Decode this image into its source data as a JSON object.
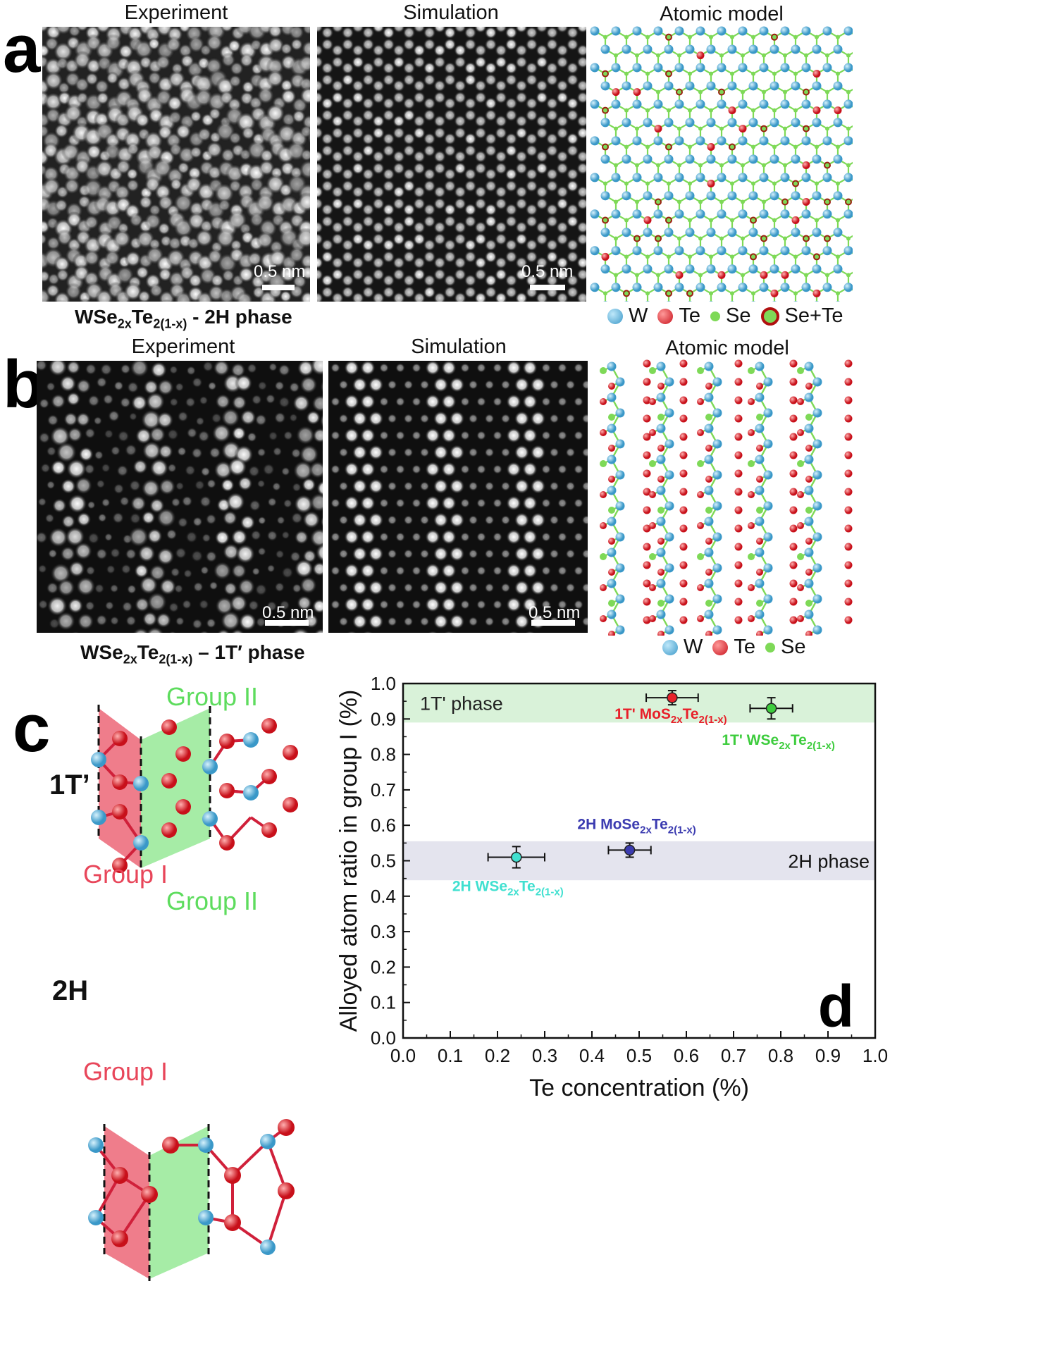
{
  "panel_a": {
    "letter": "a",
    "titles": {
      "experiment": "Experiment",
      "simulation": "Simulation",
      "model": "Atomic model"
    },
    "scalebar": "0.5 nm",
    "caption": {
      "pre": "WSe",
      "sub1": "2x",
      "mid": "Te",
      "sub2": "2(1-x)",
      "post": " - 2H phase"
    },
    "legend": [
      {
        "label": "W",
        "color": "#5bb8e0"
      },
      {
        "label": "Te",
        "color": "#e8202a"
      },
      {
        "label": "Se",
        "color": "#7ed957"
      },
      {
        "label": "Se+Te",
        "color": "#e8202a"
      }
    ]
  },
  "panel_b": {
    "letter": "b",
    "titles": {
      "experiment": "Experiment",
      "simulation": "Simulation",
      "model": "Atomic model"
    },
    "scalebar": "0.5 nm",
    "caption": {
      "pre": "WSe",
      "sub1": "2x",
      "mid": "Te",
      "sub2": "2(1-x)",
      "post": " – 1T′ phase"
    },
    "legend": [
      {
        "label": "W",
        "color": "#5bb8e0"
      },
      {
        "label": "Te",
        "color": "#e8202a"
      },
      {
        "label": "Se",
        "color": "#7ed957"
      }
    ]
  },
  "panel_c": {
    "letter": "c",
    "top_phase": "1T’",
    "bottom_phase": "2H",
    "group1": "Group I",
    "group2": "Group II",
    "colors": {
      "group1": "#e8465a",
      "group2": "#5ddc5d"
    }
  },
  "chart_data": {
    "type": "scatter",
    "letter": "d",
    "xlabel": "Te concentration (%)",
    "ylabel": "Alloyed atom ratio in group I (%)",
    "xlim": [
      0.0,
      1.0
    ],
    "ylim": [
      0.0,
      1.0
    ],
    "xticks": [
      "0.0",
      "0.1",
      "0.2",
      "0.3",
      "0.4",
      "0.5",
      "0.6",
      "0.7",
      "0.8",
      "0.9",
      "1.0"
    ],
    "yticks": [
      "0.0",
      "0.1",
      "0.2",
      "0.3",
      "0.4",
      "0.5",
      "0.6",
      "0.7",
      "0.8",
      "0.9",
      "1.0"
    ],
    "bands": [
      {
        "label": "1T' phase",
        "y0": 0.89,
        "y1": 1.0,
        "color": "#d9f2d9"
      },
      {
        "label": "2H phase",
        "y0": 0.445,
        "y1": 0.555,
        "color": "#e4e4ee"
      }
    ],
    "points": [
      {
        "label": "1T' MoS",
        "sub1": "2x",
        "mid": "Te",
        "sub2": "2(1-x)",
        "x": 0.57,
        "y": 0.96,
        "xerr": 0.055,
        "yerr": 0.02,
        "color": "#e8202a",
        "label_color": "#e8202a"
      },
      {
        "label": "1T' WSe",
        "sub1": "2x",
        "mid": "Te",
        "sub2": "2(1-x)",
        "x": 0.78,
        "y": 0.93,
        "xerr": 0.045,
        "yerr": 0.03,
        "color": "#3dcc3d",
        "label_color": "#3dcc3d"
      },
      {
        "label": "2H MoSe",
        "sub1": "2x",
        "mid": "Te",
        "sub2": "2(1-x)",
        "x": 0.48,
        "y": 0.53,
        "xerr": 0.045,
        "yerr": 0.02,
        "color": "#3b3bb0",
        "label_color": "#3b3bb0"
      },
      {
        "label": "2H WSe",
        "sub1": "2x",
        "mid": "Te",
        "sub2": "2(1-x)",
        "x": 0.24,
        "y": 0.51,
        "xerr": 0.06,
        "yerr": 0.03,
        "color": "#40e0d0",
        "label_color": "#40e0d0"
      }
    ]
  }
}
